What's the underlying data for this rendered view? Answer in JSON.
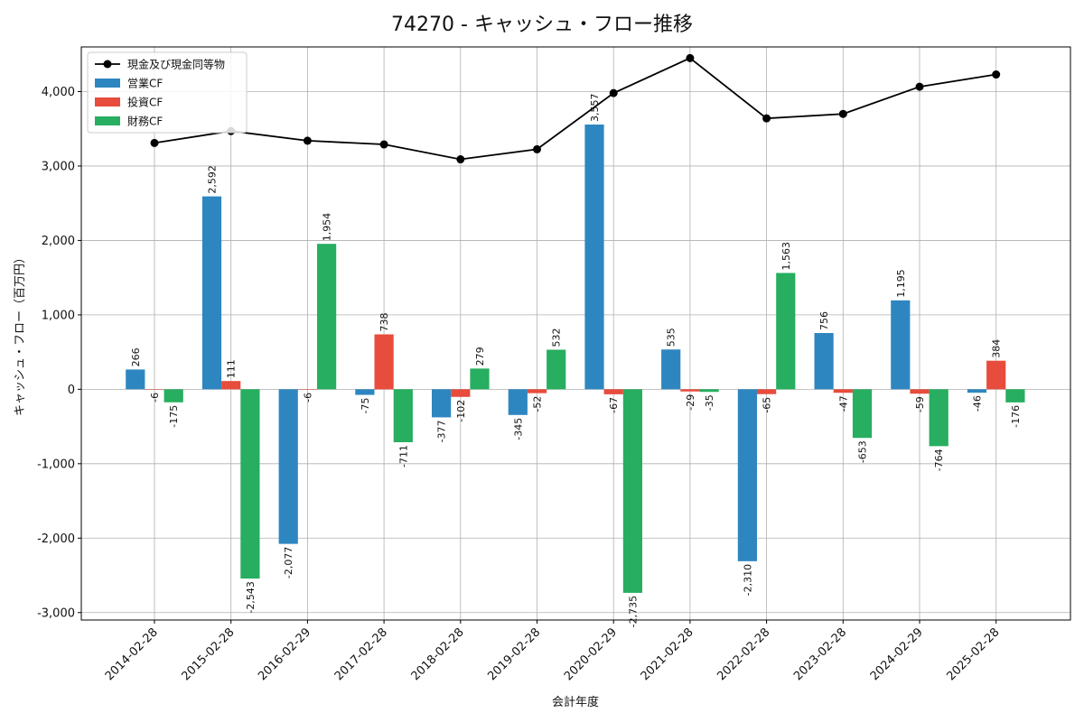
{
  "chart_data": {
    "type": "bar",
    "title": "74270 - キャッシュ・フロー推移",
    "xlabel": "会計年度",
    "ylabel": "キャッシュ・フロー（百万円）",
    "ylim": [
      -3100,
      4600
    ],
    "yticks": [
      -3000,
      -2000,
      -1000,
      0,
      1000,
      2000,
      3000,
      4000
    ],
    "ytick_labels": [
      "-3,000",
      "-2,000",
      "-1,000",
      "0",
      "1,000",
      "2,000",
      "3,000",
      "4,000"
    ],
    "grid": true,
    "legend_position": "top-left",
    "categories": [
      "2014-02-28",
      "2015-02-28",
      "2016-02-29",
      "2017-02-28",
      "2018-02-28",
      "2019-02-28",
      "2020-02-29",
      "2021-02-28",
      "2022-02-28",
      "2023-02-28",
      "2024-02-29",
      "2025-02-28"
    ],
    "series": [
      {
        "name": "営業CF",
        "type": "bar",
        "color": "#2e86c1",
        "values": [
          266,
          2592,
          -2077,
          -75,
          -377,
          -345,
          3557,
          535,
          -2310,
          756,
          1195,
          -46
        ],
        "labels": [
          "266",
          "2,592",
          "-2,077",
          "-75",
          "-377",
          "-345",
          "3,557",
          "535",
          "-2,310",
          "756",
          "1,195",
          "-46"
        ]
      },
      {
        "name": "投資CF",
        "type": "bar",
        "color": "#e74c3c",
        "values": [
          -6,
          111,
          -6,
          738,
          -102,
          -52,
          -67,
          -29,
          -65,
          -47,
          -59,
          384
        ],
        "labels": [
          "-6",
          "111",
          "-6",
          "738",
          "-102",
          "-52",
          "-67",
          "-29",
          "-65",
          "-47",
          "-59",
          "384"
        ]
      },
      {
        "name": "財務CF",
        "type": "bar",
        "color": "#27ae60",
        "values": [
          -175,
          -2543,
          1954,
          -711,
          279,
          532,
          -2735,
          -35,
          1563,
          -653,
          -764,
          -176
        ],
        "labels": [
          "-175",
          "-2,543",
          "1,954",
          "-711",
          "279",
          "532",
          "-2,735",
          "-35",
          "1,563",
          "-653",
          "-764",
          "-176"
        ]
      },
      {
        "name": "現金及び現金同等物",
        "type": "line",
        "color": "#000000",
        "values": [
          3310,
          3470,
          3340,
          3290,
          3090,
          3225,
          3980,
          4450,
          3640,
          3700,
          4065,
          4230
        ]
      }
    ]
  }
}
